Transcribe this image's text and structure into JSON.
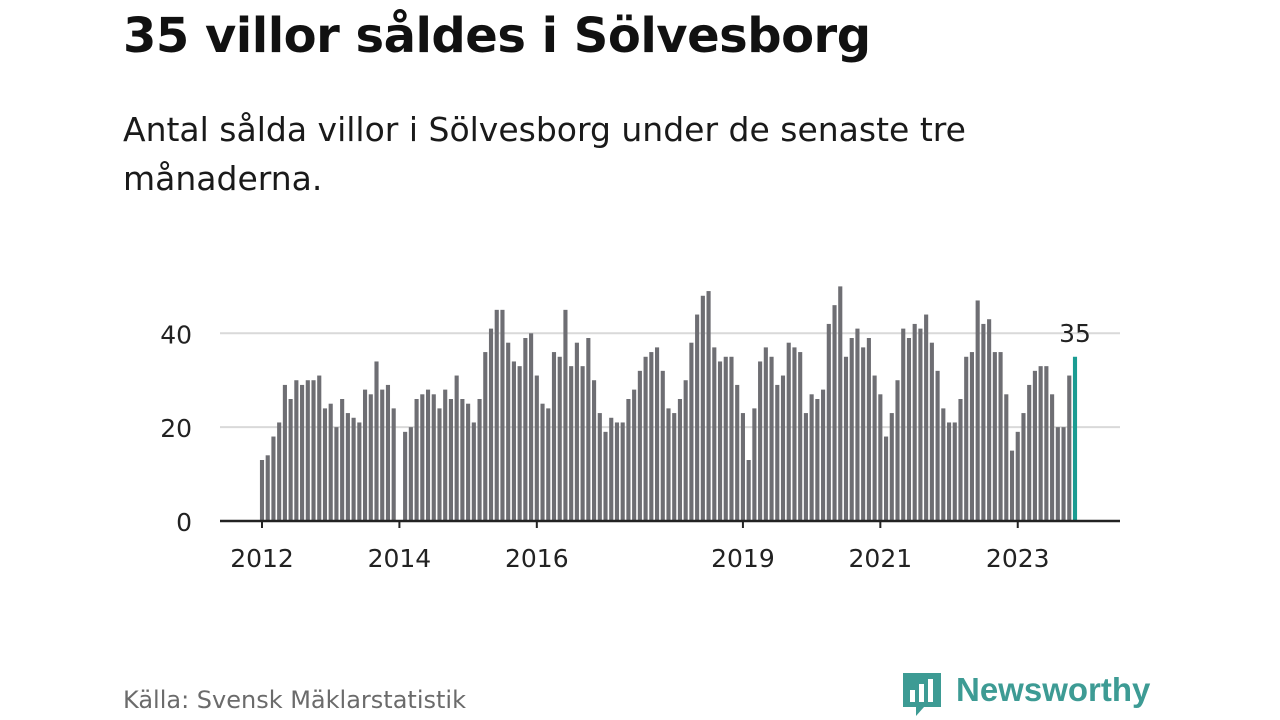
{
  "header": {
    "title": "35 villor såldes i Sölvesborg",
    "subtitle": "Antal sålda villor i Sölvesborg under de senaste tre månaderna."
  },
  "footer": {
    "source": "Källa: Svensk Mäklarstatistik",
    "brand": "Newsworthy",
    "brand_color": "#3d9b94",
    "brand_icon": "bar-chart-speech-bubble-icon"
  },
  "colors": {
    "bar": "#6e6e73",
    "highlight": "#1a9c92",
    "grid": "#d9d9d9",
    "axis": "#222222"
  },
  "chart_data": {
    "type": "bar",
    "x_unit": "month",
    "start_month": "2012-01",
    "x_ticks": [
      "2012",
      "2014",
      "2016",
      "2019",
      "2021",
      "2023"
    ],
    "y_ticks": [
      0,
      20,
      40
    ],
    "ylim": [
      0,
      52
    ],
    "grid": true,
    "values": [
      13,
      14,
      18,
      21,
      29,
      26,
      30,
      29,
      30,
      30,
      31,
      24,
      25,
      20,
      26,
      23,
      22,
      21,
      28,
      27,
      34,
      28,
      29,
      24,
      null,
      19,
      20,
      26,
      27,
      28,
      27,
      24,
      28,
      26,
      31,
      26,
      25,
      21,
      26,
      36,
      41,
      45,
      45,
      38,
      34,
      33,
      39,
      40,
      31,
      25,
      24,
      36,
      35,
      45,
      33,
      38,
      33,
      39,
      30,
      23,
      19,
      22,
      21,
      21,
      26,
      28,
      32,
      35,
      36,
      37,
      32,
      24,
      23,
      26,
      30,
      38,
      44,
      48,
      49,
      37,
      34,
      35,
      35,
      29,
      23,
      13,
      24,
      34,
      37,
      35,
      29,
      31,
      38,
      37,
      36,
      23,
      27,
      26,
      28,
      42,
      46,
      50,
      35,
      39,
      41,
      37,
      39,
      31,
      27,
      18,
      23,
      30,
      41,
      39,
      42,
      41,
      44,
      38,
      32,
      24,
      21,
      21,
      26,
      35,
      36,
      47,
      42,
      43,
      36,
      36,
      27,
      15,
      19,
      23,
      29,
      32,
      33,
      33,
      27,
      20,
      20,
      31,
      35
    ],
    "highlight_label": "35"
  }
}
